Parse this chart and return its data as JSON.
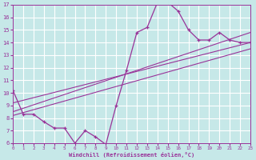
{
  "xlabel": "Windchill (Refroidissement éolien,°C)",
  "xlim": [
    0,
    23
  ],
  "ylim": [
    6,
    17
  ],
  "yticks": [
    6,
    7,
    8,
    9,
    10,
    11,
    12,
    13,
    14,
    15,
    16,
    17
  ],
  "xticks": [
    0,
    1,
    2,
    3,
    4,
    5,
    6,
    7,
    8,
    9,
    10,
    11,
    12,
    13,
    14,
    15,
    16,
    17,
    18,
    19,
    20,
    21,
    22,
    23
  ],
  "background_color": "#c6e8e8",
  "grid_color": "#ffffff",
  "line_color": "#993399",
  "curve1_x": [
    0,
    1,
    2,
    3,
    4,
    5,
    6,
    7,
    8,
    9,
    10,
    11,
    12,
    13,
    14,
    15,
    16,
    17,
    18,
    19,
    20,
    21,
    22,
    23
  ],
  "curve1_y": [
    10.2,
    8.3,
    8.3,
    7.7,
    7.2,
    7.2,
    6.0,
    7.0,
    6.5,
    5.9,
    9.0,
    11.8,
    14.8,
    15.2,
    17.2,
    17.2,
    16.5,
    15.0,
    14.2,
    14.2,
    14.8,
    14.2,
    14.0,
    14.0
  ],
  "line1_x": [
    0,
    23
  ],
  "line1_y": [
    8.2,
    13.5
  ],
  "line2_x": [
    0,
    23
  ],
  "line2_y": [
    8.5,
    14.8
  ],
  "line3_x": [
    0,
    23
  ],
  "line3_y": [
    9.2,
    14.0
  ]
}
